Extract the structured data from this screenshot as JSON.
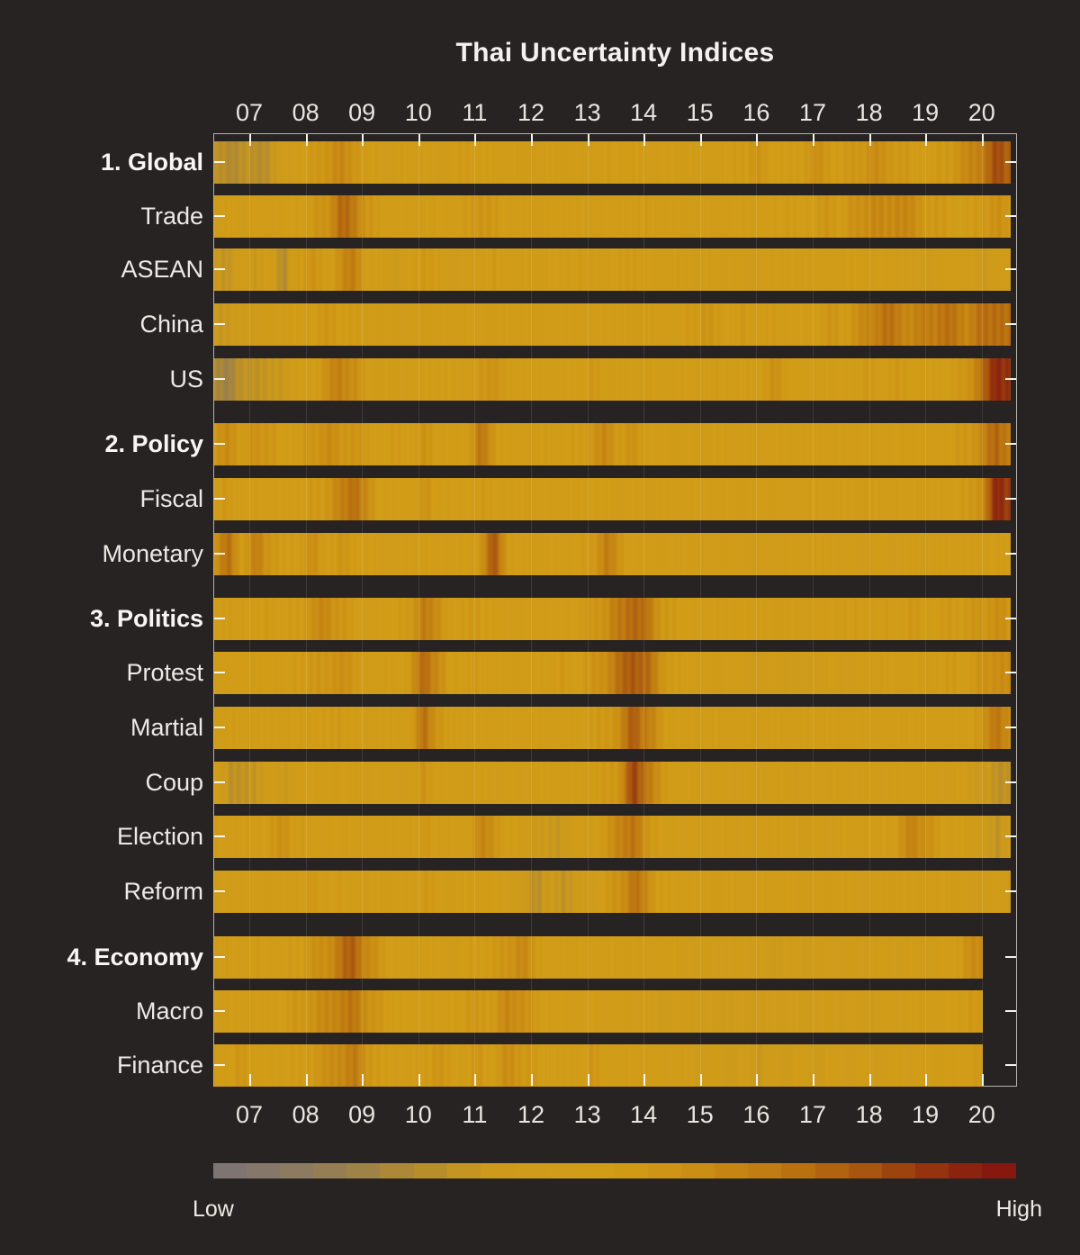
{
  "chart_data": {
    "type": "heatmap",
    "title": "Thai Uncertainty Indices",
    "x_tick_labels": [
      "07",
      "08",
      "09",
      "10",
      "11",
      "12",
      "13",
      "14",
      "15",
      "16",
      "17",
      "18",
      "19",
      "20"
    ],
    "time_start": "2006-Q3",
    "time_interval": "quarterly",
    "grid": true,
    "value_scale": {
      "min": 0,
      "max": 100,
      "low_label": "Low",
      "high_label": "High"
    },
    "colormap_stops": [
      [
        0.0,
        "#7b7478"
      ],
      [
        0.1,
        "#8b7b62"
      ],
      [
        0.18,
        "#9d8148"
      ],
      [
        0.26,
        "#b58c2e"
      ],
      [
        0.34,
        "#cd9a1b"
      ],
      [
        0.5,
        "#d29d17"
      ],
      [
        0.6,
        "#cb8f14"
      ],
      [
        0.7,
        "#bf7a11"
      ],
      [
        0.8,
        "#ab5a0f"
      ],
      [
        0.88,
        "#97390e"
      ],
      [
        0.94,
        "#8c220f"
      ],
      [
        1.0,
        "#84120f"
      ]
    ],
    "rows": [
      {
        "id": "global",
        "label": "1. Global",
        "header": true,
        "end": "2020-Q4",
        "values": [
          28,
          25,
          30,
          26,
          32,
          38,
          45,
          52,
          58,
          62,
          58,
          48,
          42,
          44,
          46,
          44,
          42,
          46,
          52,
          48,
          44,
          46,
          42,
          44,
          46,
          44,
          44,
          46,
          50,
          48,
          50,
          46,
          44,
          46,
          44,
          46,
          44,
          48,
          52,
          55,
          50,
          48,
          52,
          58,
          54,
          50,
          55,
          60,
          58,
          54,
          50,
          48,
          52,
          56,
          62,
          70,
          82,
          78
        ]
      },
      {
        "id": "trade",
        "label": "Trade",
        "header": false,
        "end": "2020-Q4",
        "values": [
          40,
          46,
          42,
          48,
          44,
          46,
          48,
          52,
          58,
          74,
          70,
          55,
          48,
          45,
          44,
          47,
          49,
          45,
          50,
          58,
          52,
          47,
          45,
          44,
          46,
          48,
          45,
          44,
          48,
          46,
          48,
          50,
          46,
          44,
          45,
          46,
          44,
          46,
          48,
          46,
          48,
          50,
          48,
          50,
          55,
          52,
          58,
          64,
          60,
          66,
          60,
          54,
          52,
          50,
          48,
          54,
          58,
          52
        ]
      },
      {
        "id": "asean",
        "label": "ASEAN",
        "header": false,
        "end": "2020-Q4",
        "values": [
          38,
          28,
          48,
          32,
          44,
          24,
          52,
          58,
          46,
          62,
          66,
          50,
          42,
          38,
          46,
          56,
          48,
          42,
          40,
          46,
          52,
          44,
          46,
          42,
          48,
          44,
          52,
          46,
          44,
          48,
          54,
          48,
          44,
          46,
          42,
          44,
          46,
          40,
          44,
          40,
          46,
          48,
          44,
          46,
          42,
          48,
          45,
          42,
          48,
          44,
          40,
          38,
          42,
          46,
          42,
          34,
          44,
          38
        ]
      },
      {
        "id": "china",
        "label": "China",
        "header": false,
        "end": "2020-Q4",
        "values": [
          36,
          34,
          38,
          40,
          42,
          44,
          46,
          50,
          54,
          52,
          50,
          46,
          42,
          44,
          42,
          44,
          46,
          44,
          46,
          48,
          44,
          46,
          44,
          42,
          44,
          46,
          44,
          46,
          48,
          46,
          44,
          46,
          44,
          46,
          52,
          56,
          52,
          48,
          52,
          48,
          50,
          46,
          48,
          50,
          54,
          52,
          58,
          66,
          72,
          68,
          64,
          68,
          72,
          70,
          66,
          72,
          76,
          70
        ]
      },
      {
        "id": "us",
        "label": "US",
        "header": false,
        "end": "2020-Q4",
        "values": [
          24,
          20,
          28,
          32,
          30,
          36,
          44,
          50,
          58,
          68,
          60,
          48,
          44,
          42,
          44,
          46,
          48,
          44,
          46,
          52,
          60,
          48,
          46,
          44,
          46,
          44,
          48,
          54,
          46,
          44,
          44,
          46,
          44,
          46,
          44,
          46,
          48,
          46,
          48,
          50,
          58,
          52,
          48,
          46,
          48,
          46,
          48,
          52,
          50,
          52,
          50,
          48,
          46,
          50,
          58,
          72,
          95,
          88
        ]
      },
      {
        "id": "policy",
        "label": "2. Policy",
        "header": true,
        "end": "2020-Q4",
        "values": [
          52,
          64,
          48,
          60,
          54,
          46,
          50,
          56,
          62,
          55,
          58,
          50,
          46,
          52,
          48,
          56,
          50,
          46,
          48,
          70,
          56,
          48,
          46,
          44,
          46,
          48,
          50,
          56,
          62,
          54,
          56,
          50,
          46,
          44,
          46,
          44,
          46,
          44,
          46,
          44,
          46,
          44,
          46,
          48,
          46,
          44,
          46,
          48,
          46,
          48,
          50,
          48,
          46,
          50,
          54,
          64,
          76,
          70
        ]
      },
      {
        "id": "fiscal",
        "label": "Fiscal",
        "header": false,
        "end": "2020-Q4",
        "values": [
          46,
          54,
          44,
          50,
          46,
          44,
          48,
          52,
          56,
          64,
          76,
          58,
          48,
          46,
          50,
          56,
          48,
          46,
          48,
          52,
          48,
          46,
          44,
          46,
          44,
          46,
          48,
          50,
          46,
          44,
          46,
          44,
          46,
          44,
          44,
          46,
          44,
          46,
          44,
          46,
          44,
          42,
          44,
          46,
          44,
          46,
          44,
          46,
          44,
          46,
          48,
          46,
          44,
          48,
          52,
          62,
          92,
          88
        ]
      },
      {
        "id": "monetary",
        "label": "Monetary",
        "header": false,
        "end": "2020-Q4",
        "values": [
          58,
          72,
          52,
          66,
          56,
          48,
          52,
          58,
          50,
          54,
          52,
          46,
          44,
          42,
          46,
          50,
          46,
          44,
          46,
          56,
          80,
          54,
          46,
          44,
          46,
          44,
          46,
          52,
          68,
          56,
          48,
          46,
          44,
          42,
          44,
          42,
          44,
          42,
          44,
          42,
          44,
          42,
          44,
          46,
          44,
          42,
          44,
          42,
          44,
          42,
          44,
          42,
          44,
          46,
          44,
          46,
          48,
          45
        ]
      },
      {
        "id": "politics",
        "label": "3. Politics",
        "header": true,
        "end": "2020-Q4",
        "values": [
          50,
          44,
          52,
          46,
          54,
          48,
          52,
          58,
          64,
          56,
          50,
          46,
          48,
          52,
          50,
          72,
          58,
          48,
          50,
          54,
          48,
          46,
          46,
          48,
          46,
          48,
          50,
          54,
          60,
          68,
          78,
          70,
          56,
          50,
          48,
          46,
          48,
          46,
          48,
          46,
          44,
          46,
          44,
          46,
          48,
          46,
          48,
          46,
          48,
          50,
          52,
          48,
          50,
          54,
          52,
          56,
          60,
          54
        ]
      },
      {
        "id": "protest",
        "label": "Protest",
        "header": false,
        "end": "2020-Q4",
        "values": [
          46,
          42,
          50,
          44,
          48,
          46,
          50,
          56,
          52,
          62,
          52,
          46,
          44,
          48,
          52,
          78,
          60,
          48,
          48,
          52,
          46,
          44,
          44,
          46,
          48,
          52,
          50,
          54,
          62,
          72,
          82,
          74,
          58,
          50,
          46,
          44,
          42,
          44,
          40,
          38,
          42,
          40,
          38,
          42,
          44,
          40,
          42,
          44,
          46,
          44,
          46,
          44,
          48,
          52,
          50,
          56,
          62,
          58
        ]
      },
      {
        "id": "martial",
        "label": "Martial",
        "header": false,
        "end": "2020-Q4",
        "values": [
          44,
          48,
          44,
          46,
          44,
          46,
          48,
          52,
          48,
          54,
          48,
          44,
          46,
          44,
          48,
          74,
          56,
          46,
          46,
          48,
          44,
          46,
          44,
          46,
          44,
          46,
          46,
          50,
          54,
          60,
          80,
          68,
          54,
          48,
          46,
          44,
          46,
          44,
          44,
          46,
          44,
          46,
          44,
          46,
          48,
          44,
          46,
          44,
          46,
          48,
          46,
          48,
          46,
          48,
          50,
          54,
          74,
          58
        ]
      },
      {
        "id": "coup",
        "label": "Coup",
        "header": false,
        "end": "2020-Q4",
        "values": [
          48,
          32,
          28,
          34,
          40,
          36,
          44,
          48,
          44,
          50,
          46,
          42,
          44,
          40,
          46,
          56,
          48,
          42,
          44,
          46,
          42,
          44,
          42,
          44,
          46,
          44,
          46,
          48,
          52,
          58,
          85,
          72,
          54,
          46,
          44,
          42,
          44,
          42,
          44,
          42,
          44,
          42,
          40,
          44,
          42,
          44,
          42,
          44,
          42,
          44,
          46,
          44,
          42,
          44,
          40,
          34,
          30,
          32
        ]
      },
      {
        "id": "election",
        "label": "Election",
        "header": false,
        "end": "2020-Q4",
        "values": [
          48,
          44,
          50,
          46,
          52,
          58,
          50,
          46,
          44,
          48,
          46,
          44,
          46,
          44,
          46,
          52,
          48,
          46,
          48,
          64,
          58,
          48,
          44,
          36,
          32,
          36,
          40,
          46,
          52,
          68,
          70,
          58,
          48,
          44,
          42,
          44,
          42,
          44,
          42,
          44,
          46,
          44,
          42,
          44,
          42,
          46,
          44,
          46,
          48,
          52,
          68,
          58,
          50,
          46,
          44,
          40,
          28,
          42
        ]
      },
      {
        "id": "reform",
        "label": "Reform",
        "header": false,
        "end": "2020-Q4",
        "values": [
          46,
          42,
          48,
          44,
          46,
          44,
          48,
          52,
          46,
          50,
          46,
          44,
          46,
          42,
          46,
          54,
          48,
          44,
          46,
          50,
          46,
          42,
          36,
          30,
          34,
          32,
          36,
          42,
          50,
          58,
          72,
          62,
          50,
          46,
          44,
          46,
          44,
          46,
          44,
          46,
          44,
          46,
          44,
          42,
          44,
          46,
          44,
          42,
          44,
          46,
          44,
          46,
          48,
          44,
          42,
          38,
          44,
          40
        ]
      },
      {
        "id": "economy",
        "label": "4. Economy",
        "header": true,
        "end": "2020-Q2",
        "values": [
          44,
          48,
          44,
          50,
          46,
          48,
          52,
          56,
          60,
          72,
          78,
          62,
          52,
          48,
          46,
          48,
          46,
          44,
          48,
          52,
          50,
          58,
          62,
          54,
          48,
          46,
          46,
          48,
          46,
          44,
          46,
          44,
          46,
          44,
          42,
          40,
          42,
          40,
          42,
          40,
          38,
          42,
          40,
          42,
          40,
          42,
          40,
          42,
          44,
          42,
          44,
          42,
          46,
          50,
          58,
          62
        ]
      },
      {
        "id": "macro",
        "label": "Macro",
        "header": false,
        "end": "2020-Q2",
        "values": [
          42,
          46,
          44,
          48,
          46,
          50,
          54,
          58,
          62,
          68,
          70,
          60,
          52,
          48,
          46,
          48,
          46,
          48,
          50,
          54,
          52,
          64,
          60,
          52,
          48,
          46,
          44,
          46,
          44,
          42,
          44,
          42,
          40,
          42,
          40,
          38,
          40,
          38,
          40,
          38,
          40,
          42,
          38,
          40,
          42,
          40,
          42,
          40,
          44,
          42,
          44,
          46,
          44,
          48,
          52,
          50
        ]
      },
      {
        "id": "finance",
        "label": "Finance",
        "header": false,
        "end": "2020-Q2",
        "values": [
          52,
          48,
          54,
          50,
          46,
          48,
          50,
          54,
          58,
          64,
          68,
          56,
          50,
          46,
          48,
          52,
          56,
          48,
          50,
          54,
          50,
          60,
          56,
          50,
          46,
          44,
          46,
          54,
          48,
          44,
          46,
          44,
          42,
          44,
          42,
          40,
          42,
          38,
          40,
          36,
          40,
          38,
          42,
          38,
          40,
          42,
          40,
          42,
          40,
          44,
          42,
          46,
          44,
          48,
          50,
          52
        ]
      }
    ]
  },
  "colorbar": {
    "low_label": "Low",
    "high_label": "High"
  },
  "colors": {
    "background": "#272322",
    "spine": "#b3afa8",
    "tick": "#f6f3eb",
    "text": "#eceae5",
    "header_text": "#f8f6f2",
    "base_amber": "#d29d17",
    "high_red": "#84120f",
    "low_gray": "#7b7478"
  }
}
